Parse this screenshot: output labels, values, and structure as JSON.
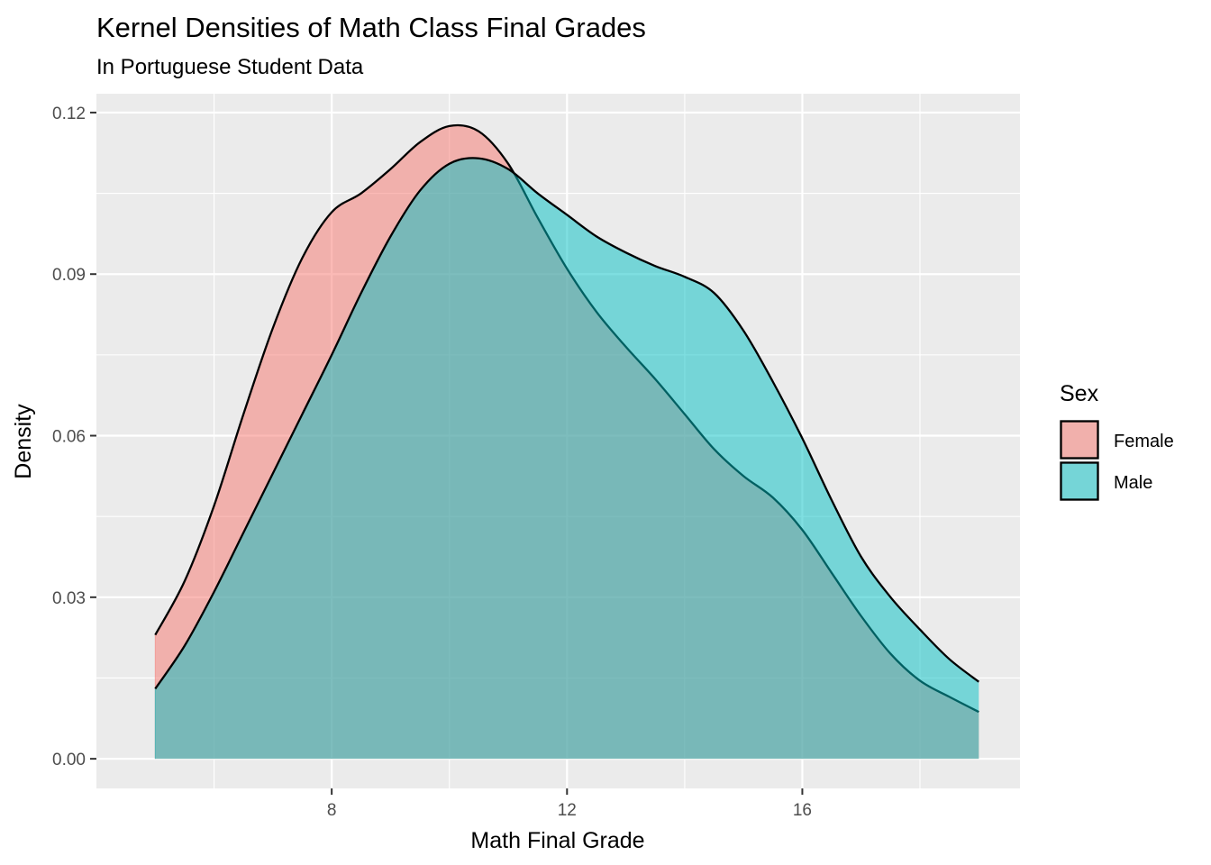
{
  "chart_data": {
    "type": "area",
    "title": "Kernel Densities of Math Class Final Grades",
    "subtitle": "In Portuguese Student Data",
    "xlabel": "Math Final Grade",
    "ylabel": "Density",
    "xlim": [
      4.0,
      19.7
    ],
    "ylim": [
      -0.0055,
      0.1235
    ],
    "x_ticks": [
      8,
      12,
      16
    ],
    "x_tick_labels": [
      "8",
      "12",
      "16"
    ],
    "y_ticks": [
      0.0,
      0.03,
      0.06,
      0.09,
      0.12
    ],
    "y_tick_labels": [
      "0.00",
      "0.03",
      "0.06",
      "0.09",
      "0.12"
    ],
    "grid": true,
    "legend": {
      "title": "Sex",
      "position": "right"
    },
    "series": [
      {
        "name": "Female",
        "color": "#F8766D",
        "x": [
          5,
          5.5,
          6,
          6.5,
          7,
          7.5,
          8,
          8.5,
          9,
          9.5,
          10,
          10.5,
          11,
          11.5,
          12,
          12.5,
          13,
          13.5,
          14,
          14.5,
          15,
          15.5,
          16,
          16.5,
          17,
          17.5,
          18,
          18.5,
          19
        ],
        "values": [
          0.023,
          0.033,
          0.047,
          0.064,
          0.08,
          0.093,
          0.1015,
          0.105,
          0.1095,
          0.1145,
          0.1175,
          0.1165,
          0.1105,
          0.1005,
          0.091,
          0.083,
          0.0765,
          0.0705,
          0.064,
          0.0575,
          0.0525,
          0.0485,
          0.0425,
          0.0345,
          0.0265,
          0.0195,
          0.0145,
          0.0115,
          0.0087
        ]
      },
      {
        "name": "Male",
        "color": "#00BFC4",
        "x": [
          5,
          5.5,
          6,
          6.5,
          7,
          7.5,
          8,
          8.5,
          9,
          9.5,
          10,
          10.5,
          11,
          11.5,
          12,
          12.5,
          13,
          13.5,
          14,
          14.5,
          15,
          15.5,
          16,
          16.5,
          17,
          17.5,
          18,
          18.5,
          19
        ],
        "values": [
          0.013,
          0.021,
          0.031,
          0.042,
          0.053,
          0.064,
          0.075,
          0.0865,
          0.097,
          0.1055,
          0.1105,
          0.1115,
          0.1095,
          0.105,
          0.101,
          0.097,
          0.094,
          0.0915,
          0.0895,
          0.0865,
          0.0795,
          0.07,
          0.0595,
          0.048,
          0.0375,
          0.03,
          0.024,
          0.0185,
          0.0143
        ]
      }
    ]
  }
}
